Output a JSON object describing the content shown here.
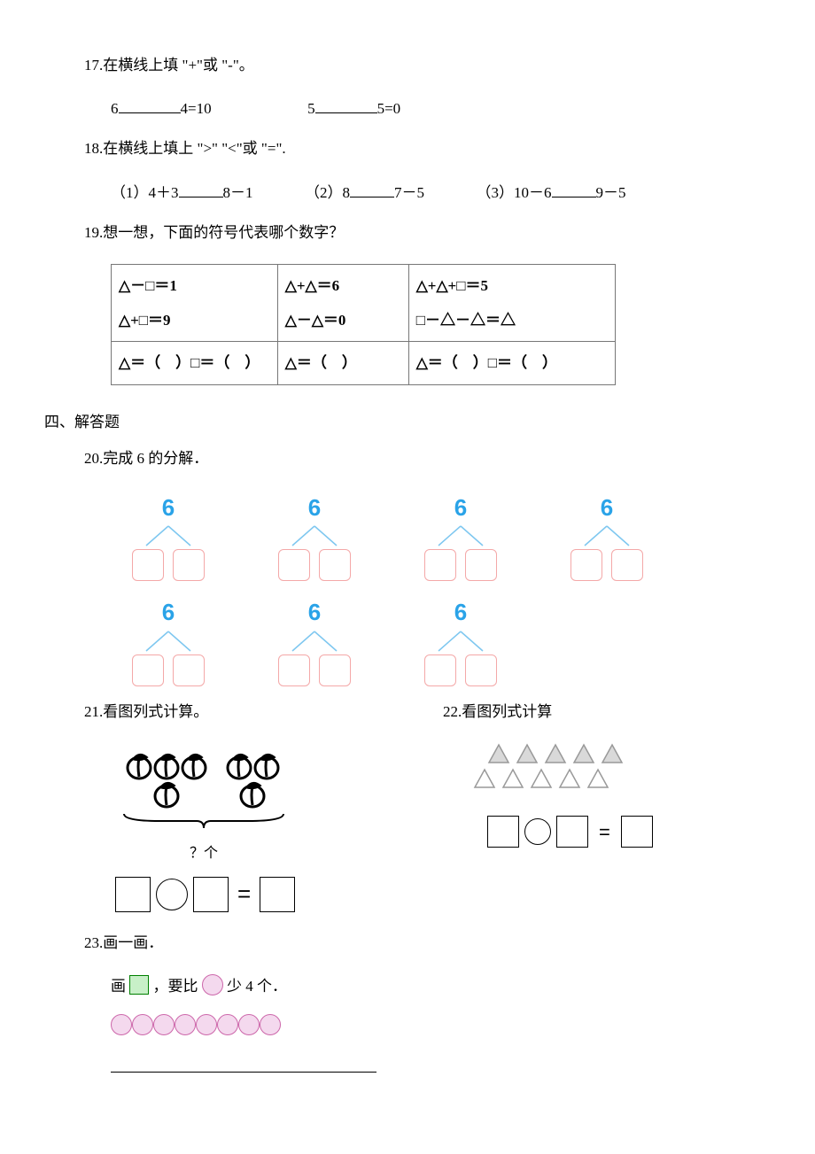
{
  "q17": {
    "prompt": "17.在横线上填 \"+\"或 \"-\"。",
    "expr1a": "6",
    "expr1b": "4=10",
    "expr2a": "5",
    "expr2b": "5=0"
  },
  "q18": {
    "prompt": "18.在横线上填上 \">\" \"<\"或 \"=\".",
    "p1a": "（1）4＋3",
    "p1b": "8－1",
    "p2a": "（2）8",
    "p2b": "7－5",
    "p3a": "（3）10－6",
    "p3b": "9－5"
  },
  "q19": {
    "prompt": "19.想一想，下面的符号代表哪个数字？",
    "r1c1a": "△－□＝1",
    "r1c2a": "△+△＝6",
    "r1c3a": "△+△+□＝5",
    "r1c1b": "△+□＝9",
    "r1c2b": "△－△＝0",
    "r1c3b": "□－△－△＝△",
    "r2c1": "△＝（　）□＝（　）",
    "r2c2": "△＝（　）",
    "r2c3": "△＝（　）□＝（　）"
  },
  "section4": "四、解答题",
  "q20": {
    "prompt": "20.完成 6 的分解．",
    "num": "6",
    "num_color": "#2aa3e8",
    "branch_color": "#7ec7f0",
    "box_color": "#f4a8a8",
    "count_row1": 4,
    "count_row2": 3
  },
  "q21": {
    "prompt": "21.看图列式计算。",
    "unit": "？个"
  },
  "q22": {
    "prompt": "22.看图列式计算",
    "row1_filled": 5,
    "row2_outline": 5,
    "tri_fill_color": "#d9d9d9",
    "tri_stroke_color": "#999"
  },
  "q23": {
    "prompt": "23.画一画．",
    "text_a": "画",
    "text_b": "，要比",
    "text_c": "少 4 个．",
    "circle_count": 8,
    "sq_border": "#008000",
    "sq_fill": "#c8f0c8",
    "circ_border": "#cc66aa",
    "circ_fill": "#f4d9ee"
  }
}
